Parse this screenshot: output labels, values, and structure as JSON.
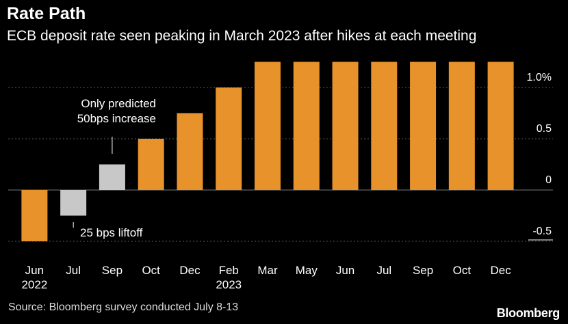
{
  "header": {
    "title": "Rate Path",
    "subtitle": "ECB deposit rate seen peaking in March 2023 after hikes at each meeting"
  },
  "footer": {
    "source": "Source: Bloomberg survey conducted July 8-13",
    "brand": "Bloomberg"
  },
  "colors": {
    "background": "#000000",
    "forecast_bar": "#E8922C",
    "predicted_bar": "#C8C8C8",
    "gridline": "#666666",
    "text": "#FFFFFF"
  },
  "chart_data": {
    "type": "bar",
    "title": "Rate Path",
    "subtitle": "ECB deposit rate seen peaking in March 2023 after hikes at each meeting",
    "categories": [
      "Jun",
      "Jul",
      "Sep",
      "Oct",
      "Dec",
      "Feb",
      "Mar",
      "May",
      "Jun",
      "Jul",
      "Sep",
      "Oct",
      "Dec"
    ],
    "category_sublabels": [
      "2022",
      "",
      "",
      "",
      "",
      "2023",
      "",
      "",
      "",
      "",
      "",
      "",
      ""
    ],
    "values": [
      -0.5,
      -0.25,
      0.25,
      0.5,
      0.75,
      1.0,
      1.25,
      1.25,
      1.25,
      1.25,
      1.25,
      1.25,
      1.25
    ],
    "bar_colors": [
      "#E8922C",
      "#C8C8C8",
      "#C8C8C8",
      "#E8922C",
      "#E8922C",
      "#E8922C",
      "#E8922C",
      "#E8922C",
      "#E8922C",
      "#E8922C",
      "#E8922C",
      "#E8922C",
      "#E8922C"
    ],
    "ylim": [
      -0.5,
      1.25
    ],
    "yticks": [
      -0.5,
      0,
      0.5,
      1.0
    ],
    "ytick_labels": [
      "-0.5",
      "0",
      "0.5",
      "1.0%"
    ],
    "yaxis_position": "right",
    "grid": true,
    "annotations": [
      {
        "text": "Only predicted\n50bps increase",
        "target_index": 2
      },
      {
        "text": "25 bps liftoff",
        "target_index": 1
      }
    ]
  }
}
